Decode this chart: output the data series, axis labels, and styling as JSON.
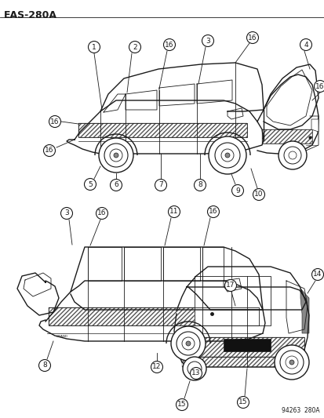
{
  "title": "EAS–280A",
  "footer": "94263  280A",
  "bg_color": "#ffffff",
  "line_color": "#1a1a1a",
  "fig_width": 4.14,
  "fig_height": 5.33,
  "dpi": 100
}
